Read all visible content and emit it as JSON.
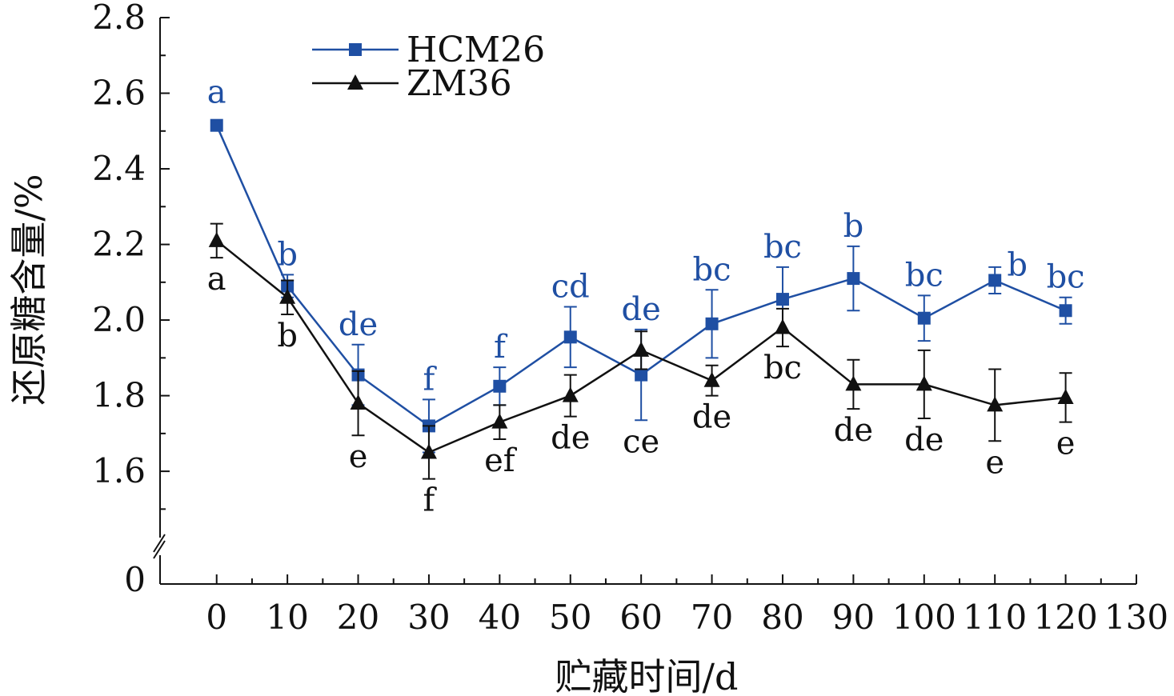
{
  "chart_data": {
    "type": "line",
    "xlabel": "贮藏时间/d",
    "ylabel": "还原糖含量/%",
    "x_ticks": [
      "0",
      "10",
      "20",
      "30",
      "40",
      "50",
      "60",
      "70",
      "80",
      "90",
      "100",
      "110",
      "120",
      "130"
    ],
    "y_ticks": [
      "1.6",
      "1.8",
      "2.0",
      "2.2",
      "2.4",
      "2.6",
      "2.8"
    ],
    "y_break_tick": "0",
    "xlim": [
      -8,
      130
    ],
    "ylim": [
      1.45,
      2.8
    ],
    "axis_break": true,
    "grid": false,
    "legend_position": "top-left",
    "x": [
      0,
      10,
      20,
      30,
      40,
      50,
      60,
      70,
      80,
      90,
      100,
      110,
      120
    ],
    "series": [
      {
        "name": "HCM26",
        "color": "#1f4fa3",
        "marker": "square",
        "values": [
          2.515,
          2.09,
          1.855,
          1.72,
          1.825,
          1.955,
          1.855,
          1.99,
          2.055,
          2.11,
          2.005,
          2.105,
          2.025
        ],
        "errors": [
          0.0,
          0.03,
          0.08,
          0.07,
          0.05,
          0.08,
          0.12,
          0.09,
          0.085,
          0.085,
          0.06,
          0.035,
          0.035
        ],
        "labels": [
          "a",
          "b",
          "de",
          "f",
          "f",
          "cd",
          "de",
          "bc",
          "bc",
          "b",
          "bc",
          "b",
          "bc"
        ]
      },
      {
        "name": "ZM36",
        "color": "#111111",
        "marker": "triangle",
        "values": [
          2.21,
          2.06,
          1.78,
          1.65,
          1.73,
          1.8,
          1.92,
          1.84,
          1.98,
          1.83,
          1.83,
          1.775,
          1.795
        ],
        "errors": [
          0.045,
          0.045,
          0.085,
          0.07,
          0.045,
          0.055,
          0.05,
          0.04,
          0.05,
          0.065,
          0.09,
          0.095,
          0.065
        ],
        "labels": [
          "a",
          "b",
          "e",
          "f",
          "ef",
          "de",
          "ce",
          "de",
          "bc",
          "de",
          "de",
          "e",
          "e"
        ]
      }
    ]
  }
}
